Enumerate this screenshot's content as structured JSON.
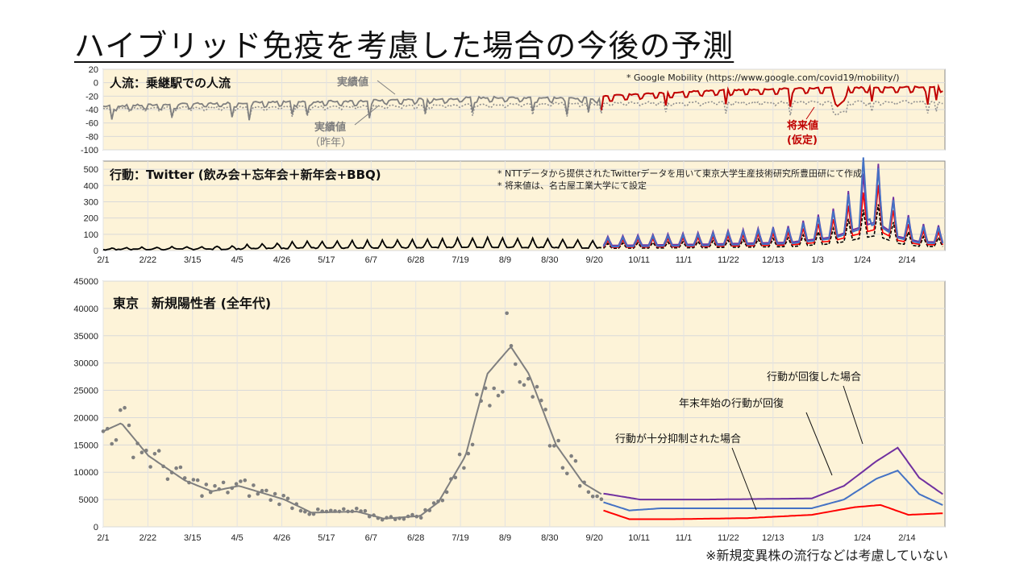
{
  "title": "ハイブリッド免疫を考慮した場合の今後の予測",
  "footnote": "※新規変異株の流行などは考慮していない",
  "x_tick_labels": [
    "2/1",
    "2/22",
    "3/15",
    "4/5",
    "4/26",
    "5/17",
    "6/7",
    "6/28",
    "7/19",
    "8/9",
    "8/30",
    "9/20",
    "10/11",
    "11/1",
    "11/22",
    "12/13",
    "1/3",
    "1/24",
    "2/14"
  ],
  "panel1": {
    "title": "人流：乗継駅での人流",
    "source_note": "* Google Mobility (https://www.google.com/covid19/mobility/)",
    "label_actual": "実績値",
    "label_actual_last_year": "実績値",
    "label_actual_last_year_sub": "（昨年）",
    "label_future": "将来値",
    "label_future_sub": "(仮定)",
    "y_ticks": [
      "20",
      "0",
      "-20",
      "-40",
      "-60",
      "-80",
      "-100"
    ]
  },
  "panel2": {
    "title": "行動：Twitter (飲み会＋忘年会＋新年会+BBQ)",
    "note1": "* NTTデータから提供されたTwitterデータを用いて東京大学生産技術研究所豊田研にて作成",
    "note2": "* 将来値は、名古屋工業大学にて設定",
    "y_ticks": [
      "500",
      "400",
      "300",
      "200",
      "100",
      "0"
    ]
  },
  "panel3": {
    "title": "東京　新規陽性者 (全年代)",
    "y_ticks": [
      "45000",
      "40000",
      "35000",
      "30000",
      "25000",
      "20000",
      "15000",
      "10000",
      "5000",
      "0"
    ],
    "annotation_restrained": "行動が十分抑制された場合",
    "annotation_holiday": "年末年始の行動が回復",
    "annotation_recovered": "行動が回復した場合"
  },
  "colors": {
    "panel_bg": "#fdf3d8",
    "actual_gray": "#808080",
    "future_red": "#c00000",
    "scenario_purple": "#7030a0",
    "scenario_blue": "#4472c4",
    "scenario_red": "#ff0000",
    "dashed_black": "#000000"
  },
  "chart_data": [
    {
      "type": "line",
      "title": "人流：乗継駅での人流",
      "x_axis": "date (2021/2/1 – 2022/2)",
      "ylim": [
        -100,
        20
      ],
      "series": [
        {
          "name": "実績値",
          "values_approx": [
            -35,
            -30,
            -32,
            -28,
            -25,
            -27,
            -25,
            -22,
            -23,
            -23,
            -22,
            -20,
            -20,
            -20,
            -20
          ]
        },
        {
          "name": "実績値（昨年）",
          "values_approx": [
            -38,
            -38,
            -36,
            -35,
            -33,
            -32,
            -30,
            -30,
            -30,
            -30,
            -30,
            -29,
            -28,
            -28,
            -28
          ]
        },
        {
          "name": "将来値(仮定)",
          "values_approx": [
            -20,
            -14,
            -10,
            -8,
            -5,
            -5,
            -8,
            -45,
            -12,
            -8,
            -5,
            -5
          ]
        }
      ]
    },
    {
      "type": "line",
      "title": "行動：Twitter (飲み会＋忘年会＋新年会+BBQ)",
      "ylim": [
        0,
        500
      ],
      "peaks": {
        "actual_max": 100,
        "future_peak_blue": 520,
        "future_peak_purple": 530
      }
    },
    {
      "type": "line",
      "title": "東京　新規陽性者 (全年代)",
      "ylim": [
        0,
        45000
      ],
      "actual_peak": {
        "date": "8/9",
        "value": 40000
      },
      "scenarios": [
        {
          "name": "行動が回復した場合",
          "level_nov": 5000,
          "peak": 14500
        },
        {
          "name": "年末年始の行動が回復",
          "level_nov": 3300,
          "peak": 10300
        },
        {
          "name": "行動が十分抑制された場合",
          "level_nov": 1400,
          "peak": 4000
        }
      ]
    }
  ]
}
